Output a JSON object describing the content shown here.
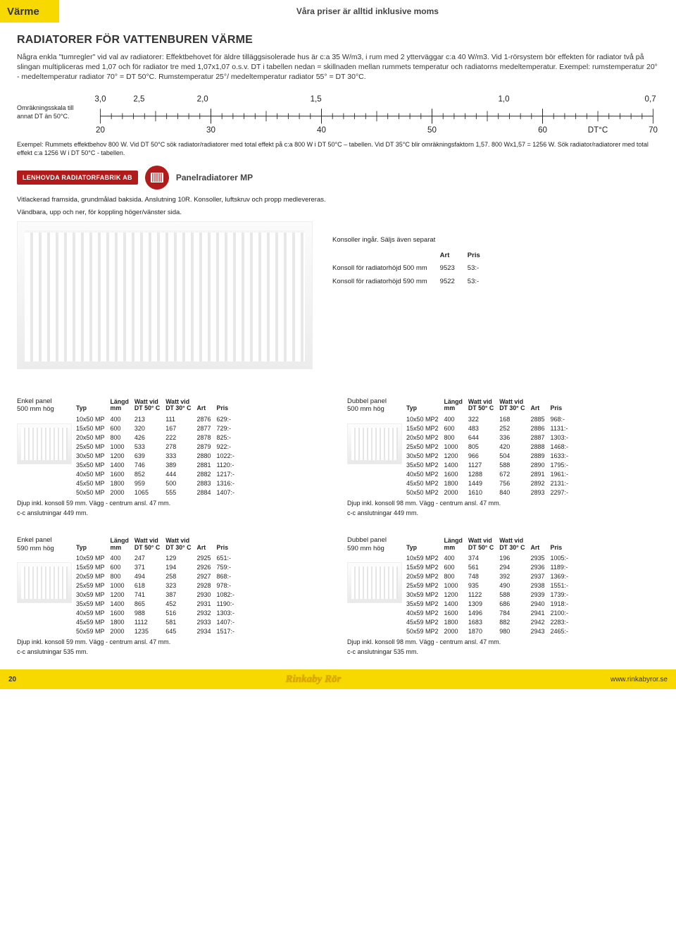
{
  "header": {
    "category": "Värme",
    "tagline": "Våra priser är alltid inklusive moms"
  },
  "title": "RADIATORER FÖR VATTENBUREN VÄRME",
  "intro": "Några enkla \"tumregler\" vid val av radiatorer: Effektbehovet för äldre tilläggsisolerade hus är c:a 35 W/m3, i rum med 2 ytterväggar c:a 40 W/m3. Vid 1-rörsystem bör effekten för radiator två på slingan multipliceras med 1,07 och för radiator tre med 1,07x1,07 o.s.v. DT i tabellen nedan = skillnaden mellan rummets temperatur och radiatorns medeltemperatur. Exempel: rumstemperatur 20° - medeltemperatur radiator 70° = DT 50°C. Rumstemperatur 25°/ medeltemperatur radiator 55° = DT 30°C.",
  "scale": {
    "label": "Omräkningsskala till annat DT än 50°C.",
    "top_values": [
      "3,0",
      "2,5",
      "2,0",
      "1,5",
      "1,0",
      "0,7"
    ],
    "top_positions": [
      0,
      0.07,
      0.185,
      0.39,
      0.73,
      0.995
    ],
    "bottom_values": [
      "20",
      "30",
      "40",
      "50",
      "60",
      "DT°C",
      "70"
    ],
    "bottom_positions": [
      0,
      0.2,
      0.4,
      0.6,
      0.8,
      0.9,
      1.0
    ],
    "minor_ticks_per_segment": 10
  },
  "example_text": "Exempel: Rummets effektbehov 800 W. Vid DT 50°C sök radiator/radiatorer med total effekt på c:a 800 W i DT 50°C – tabellen. Vid DT 35°C blir omräkningsfaktorn 1,57. 800 Wx1,57 = 1256 W. Sök radiator/radiatorer med total effekt c:a 1256 W i DT 50°C - tabellen.",
  "brand_badge": "LENHOVDA RADIATORFABRIK AB",
  "subheading": "Panelradiatorer MP",
  "desc_line1": "Vitlackerad framsida, grundmålad baksida. Anslutning 10R. Konsoller, luftskruv och propp medlevereras.",
  "desc_line2": "Vändbara, upp och ner, för koppling höger/vänster sida.",
  "konsoll": {
    "title": "Konsoller ingår. Säljs även separat",
    "columns": [
      "",
      "Art",
      "Pris"
    ],
    "rows": [
      [
        "Konsoll för radiatorhöjd 500 mm",
        "9523",
        "53:-"
      ],
      [
        "Konsoll för radiatorhöjd 590 mm",
        "9522",
        "53:-"
      ]
    ]
  },
  "table_columns": [
    "Typ",
    "Längd mm",
    "Watt vid DT 50° C",
    "Watt vid DT 30° C",
    "Art",
    "Pris"
  ],
  "tables": [
    {
      "title_l1": "Enkel panel",
      "title_l2": "500 mm hög",
      "rows": [
        [
          "10x50 MP",
          "400",
          "213",
          "111",
          "2876",
          "629:-"
        ],
        [
          "15x50 MP",
          "600",
          "320",
          "167",
          "2877",
          "729:-"
        ],
        [
          "20x50 MP",
          "800",
          "426",
          "222",
          "2878",
          "825:-"
        ],
        [
          "25x50 MP",
          "1000",
          "533",
          "278",
          "2879",
          "922:-"
        ],
        [
          "30x50 MP",
          "1200",
          "639",
          "333",
          "2880",
          "1022:-"
        ],
        [
          "35x50 MP",
          "1400",
          "746",
          "389",
          "2881",
          "1120:-"
        ],
        [
          "40x50 MP",
          "1600",
          "852",
          "444",
          "2882",
          "1217:-"
        ],
        [
          "45x50 MP",
          "1800",
          "959",
          "500",
          "2883",
          "1316:-"
        ],
        [
          "50x50 MP",
          "2000",
          "1065",
          "555",
          "2884",
          "1407:-"
        ]
      ],
      "note1": "Djup inkl. konsoll 59 mm. Vägg - centrum ansl. 47 mm.",
      "note2": "c-c anslutningar 449 mm."
    },
    {
      "title_l1": "Dubbel panel",
      "title_l2": "500 mm hög",
      "rows": [
        [
          "10x50 MP2",
          "400",
          "322",
          "168",
          "2885",
          "968:-"
        ],
        [
          "15x50 MP2",
          "600",
          "483",
          "252",
          "2886",
          "1131:-"
        ],
        [
          "20x50 MP2",
          "800",
          "644",
          "336",
          "2887",
          "1303:-"
        ],
        [
          "25x50 MP2",
          "1000",
          "805",
          "420",
          "2888",
          "1468:-"
        ],
        [
          "30x50 MP2",
          "1200",
          "966",
          "504",
          "2889",
          "1633:-"
        ],
        [
          "35x50 MP2",
          "1400",
          "1127",
          "588",
          "2890",
          "1795:-"
        ],
        [
          "40x50 MP2",
          "1600",
          "1288",
          "672",
          "2891",
          "1961:-"
        ],
        [
          "45x50 MP2",
          "1800",
          "1449",
          "756",
          "2892",
          "2131:-"
        ],
        [
          "50x50 MP2",
          "2000",
          "1610",
          "840",
          "2893",
          "2297:-"
        ]
      ],
      "note1": "Djup inkl. konsoll 98 mm. Vägg - centrum ansl. 47 mm.",
      "note2": "c-c anslutningar 449 mm."
    },
    {
      "title_l1": "Enkel panel",
      "title_l2": "590 mm hög",
      "rows": [
        [
          "10x59 MP",
          "400",
          "247",
          "129",
          "2925",
          "651:-"
        ],
        [
          "15x59 MP",
          "600",
          "371",
          "194",
          "2926",
          "759:-"
        ],
        [
          "20x59 MP",
          "800",
          "494",
          "258",
          "2927",
          "868:-"
        ],
        [
          "25x59 MP",
          "1000",
          "618",
          "323",
          "2928",
          "978:-"
        ],
        [
          "30x59 MP",
          "1200",
          "741",
          "387",
          "2930",
          "1082:-"
        ],
        [
          "35x59 MP",
          "1400",
          "865",
          "452",
          "2931",
          "1190:-"
        ],
        [
          "40x59 MP",
          "1600",
          "988",
          "516",
          "2932",
          "1303:-"
        ],
        [
          "45x59 MP",
          "1800",
          "1112",
          "581",
          "2933",
          "1407:-"
        ],
        [
          "50x59 MP",
          "2000",
          "1235",
          "645",
          "2934",
          "1517:-"
        ]
      ],
      "note1": "Djup inkl. konsoll 59 mm. Vägg - centrum ansl. 47 mm.",
      "note2": "c-c anslutningar 535 mm."
    },
    {
      "title_l1": "Dubbel panel",
      "title_l2": "590 mm hög",
      "rows": [
        [
          "10x59 MP2",
          "400",
          "374",
          "196",
          "2935",
          "1005:-"
        ],
        [
          "15x59 MP2",
          "600",
          "561",
          "294",
          "2936",
          "1189:-"
        ],
        [
          "20x59 MP2",
          "800",
          "748",
          "392",
          "2937",
          "1369:-"
        ],
        [
          "25x59 MP2",
          "1000",
          "935",
          "490",
          "2938",
          "1551:-"
        ],
        [
          "30x59 MP2",
          "1200",
          "1122",
          "588",
          "2939",
          "1739:-"
        ],
        [
          "35x59 MP2",
          "1400",
          "1309",
          "686",
          "2940",
          "1918:-"
        ],
        [
          "40x59 MP2",
          "1600",
          "1496",
          "784",
          "2941",
          "2100:-"
        ],
        [
          "45x59 MP2",
          "1800",
          "1683",
          "882",
          "2942",
          "2283:-"
        ],
        [
          "50x59 MP2",
          "2000",
          "1870",
          "980",
          "2943",
          "2465:-"
        ]
      ],
      "note1": "Djup inkl. konsoll 98 mm. Vägg - centrum ansl. 47 mm.",
      "note2": "c-c anslutningar 535 mm."
    }
  ],
  "footer": {
    "page": "20",
    "brand": "Rinkaby Rör",
    "url": "www.rinkabyror.se"
  },
  "colors": {
    "accent_yellow": "#f7d900",
    "brand_red": "#b21b1b"
  }
}
